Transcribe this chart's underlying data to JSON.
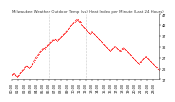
{
  "title": "Milwaukee Weather Outdoor Temp (vs) Heat Index per Minute (Last 24 Hours)",
  "bg_color": "#ffffff",
  "line_color": "#ff0000",
  "line_style": "--",
  "line_width": 0.5,
  "marker": ".",
  "marker_size": 1.0,
  "ylim": [
    17,
    47
  ],
  "yticks": [
    17,
    22,
    27,
    32,
    37,
    42,
    47
  ],
  "grid_color": "#999999",
  "grid_style": ":",
  "y_values": [
    19,
    19.3,
    19.8,
    19.2,
    18.5,
    18.2,
    18.5,
    19.0,
    19.8,
    20.5,
    21.0,
    21.5,
    22.0,
    22.8,
    23.2,
    23.0,
    22.5,
    22.2,
    22.5,
    23.0,
    24.0,
    25.0,
    26.0,
    27.0,
    27.5,
    28.0,
    28.8,
    29.5,
    30.0,
    30.5,
    31.0,
    31.5,
    31.2,
    31.8,
    32.2,
    32.8,
    33.2,
    33.8,
    34.2,
    34.8,
    35.2,
    35.0,
    35.5,
    35.2,
    34.8,
    35.2,
    35.6,
    36.0,
    36.5,
    37.0,
    37.5,
    38.0,
    38.5,
    39.0,
    39.5,
    40.0,
    40.8,
    41.5,
    42.0,
    42.5,
    43.0,
    43.5,
    44.0,
    44.5,
    44.8,
    43.5,
    43.8,
    43.2,
    42.0,
    41.5,
    41.0,
    40.5,
    40.0,
    39.5,
    39.0,
    38.5,
    38.0,
    38.5,
    39.0,
    38.5,
    38.0,
    37.5,
    37.0,
    36.5,
    36.0,
    35.5,
    35.0,
    34.5,
    34.0,
    33.5,
    33.0,
    32.5,
    32.0,
    31.5,
    31.0,
    30.5,
    30.0,
    30.5,
    31.0,
    31.5,
    32.0,
    32.0,
    31.5,
    31.0,
    30.5,
    30.0,
    30.2,
    30.8,
    31.2,
    31.5,
    31.0,
    30.5,
    30.0,
    29.5,
    29.0,
    28.5,
    28.0,
    27.5,
    27.0,
    26.5,
    26.0,
    25.5,
    25.0,
    24.5,
    24.2,
    24.8,
    25.2,
    25.8,
    26.2,
    26.8,
    27.2,
    27.5,
    27.0,
    26.5,
    26.0,
    25.5,
    25.0,
    24.5,
    24.0,
    23.5,
    23.0,
    22.5,
    22.0,
    21.5
  ],
  "vline_positions": [
    36,
    72
  ],
  "title_fontsize": 2.8,
  "tick_fontsize": 2.5,
  "xtick_every": 6
}
